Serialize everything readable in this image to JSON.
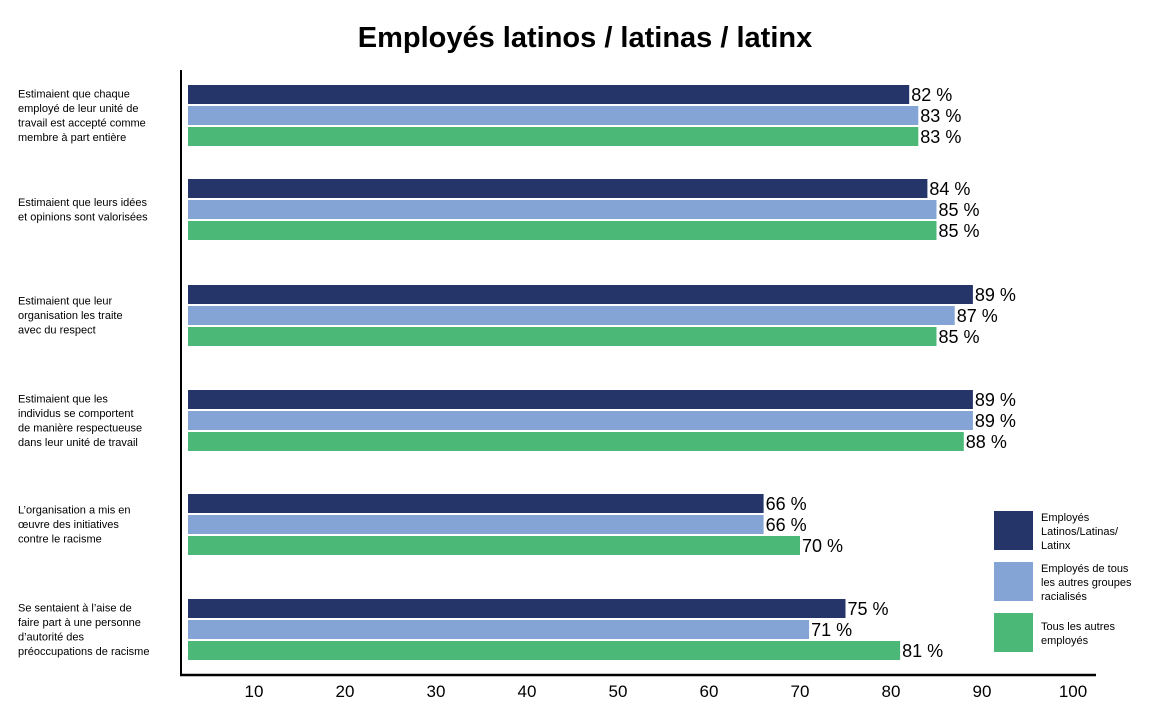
{
  "chart_data": {
    "type": "bar",
    "orientation": "horizontal",
    "title": "Employés latinos / latinas / latinx",
    "categories": [
      [
        "Estimaient que chaque",
        "employé de leur unité de",
        "travail est accepté comme",
        "membre à part entière"
      ],
      [
        "Estimaient que leurs idées",
        "et opinions sont valorisées"
      ],
      [
        "Estimaient que leur",
        "organisation les traite",
        "avec du respect"
      ],
      [
        "Estimaient que les",
        "individus se comportent",
        "de manière respectueuse",
        "dans leur unité de travail"
      ],
      [
        "L’organisation a mis en",
        "œuvre des initiatives",
        "contre le racisme"
      ],
      [
        "Se sentaient à l’aise de",
        "faire part à une personne",
        "d’autorité des",
        "préoccupations de racisme"
      ]
    ],
    "series": [
      {
        "name": [
          "Employés",
          "Latinos/Latinas/",
          "Latinx"
        ],
        "color": "#253569",
        "values": [
          82,
          84,
          89,
          89,
          66,
          75
        ]
      },
      {
        "name": [
          "Employés de tous",
          "les autres groupes",
          "racialisés"
        ],
        "color": "#85a4d6",
        "values": [
          83,
          85,
          87,
          89,
          66,
          71
        ]
      },
      {
        "name": [
          "Tous les autres",
          "employés"
        ],
        "color": "#4cb878",
        "values": [
          83,
          85,
          85,
          88,
          70,
          81
        ]
      }
    ],
    "value_suffix": " %",
    "xlim": [
      0,
      100
    ],
    "xticks": [
      10,
      20,
      30,
      40,
      50,
      60,
      70,
      80,
      90,
      100
    ],
    "legend_position": "bottom-right",
    "grid": false
  }
}
